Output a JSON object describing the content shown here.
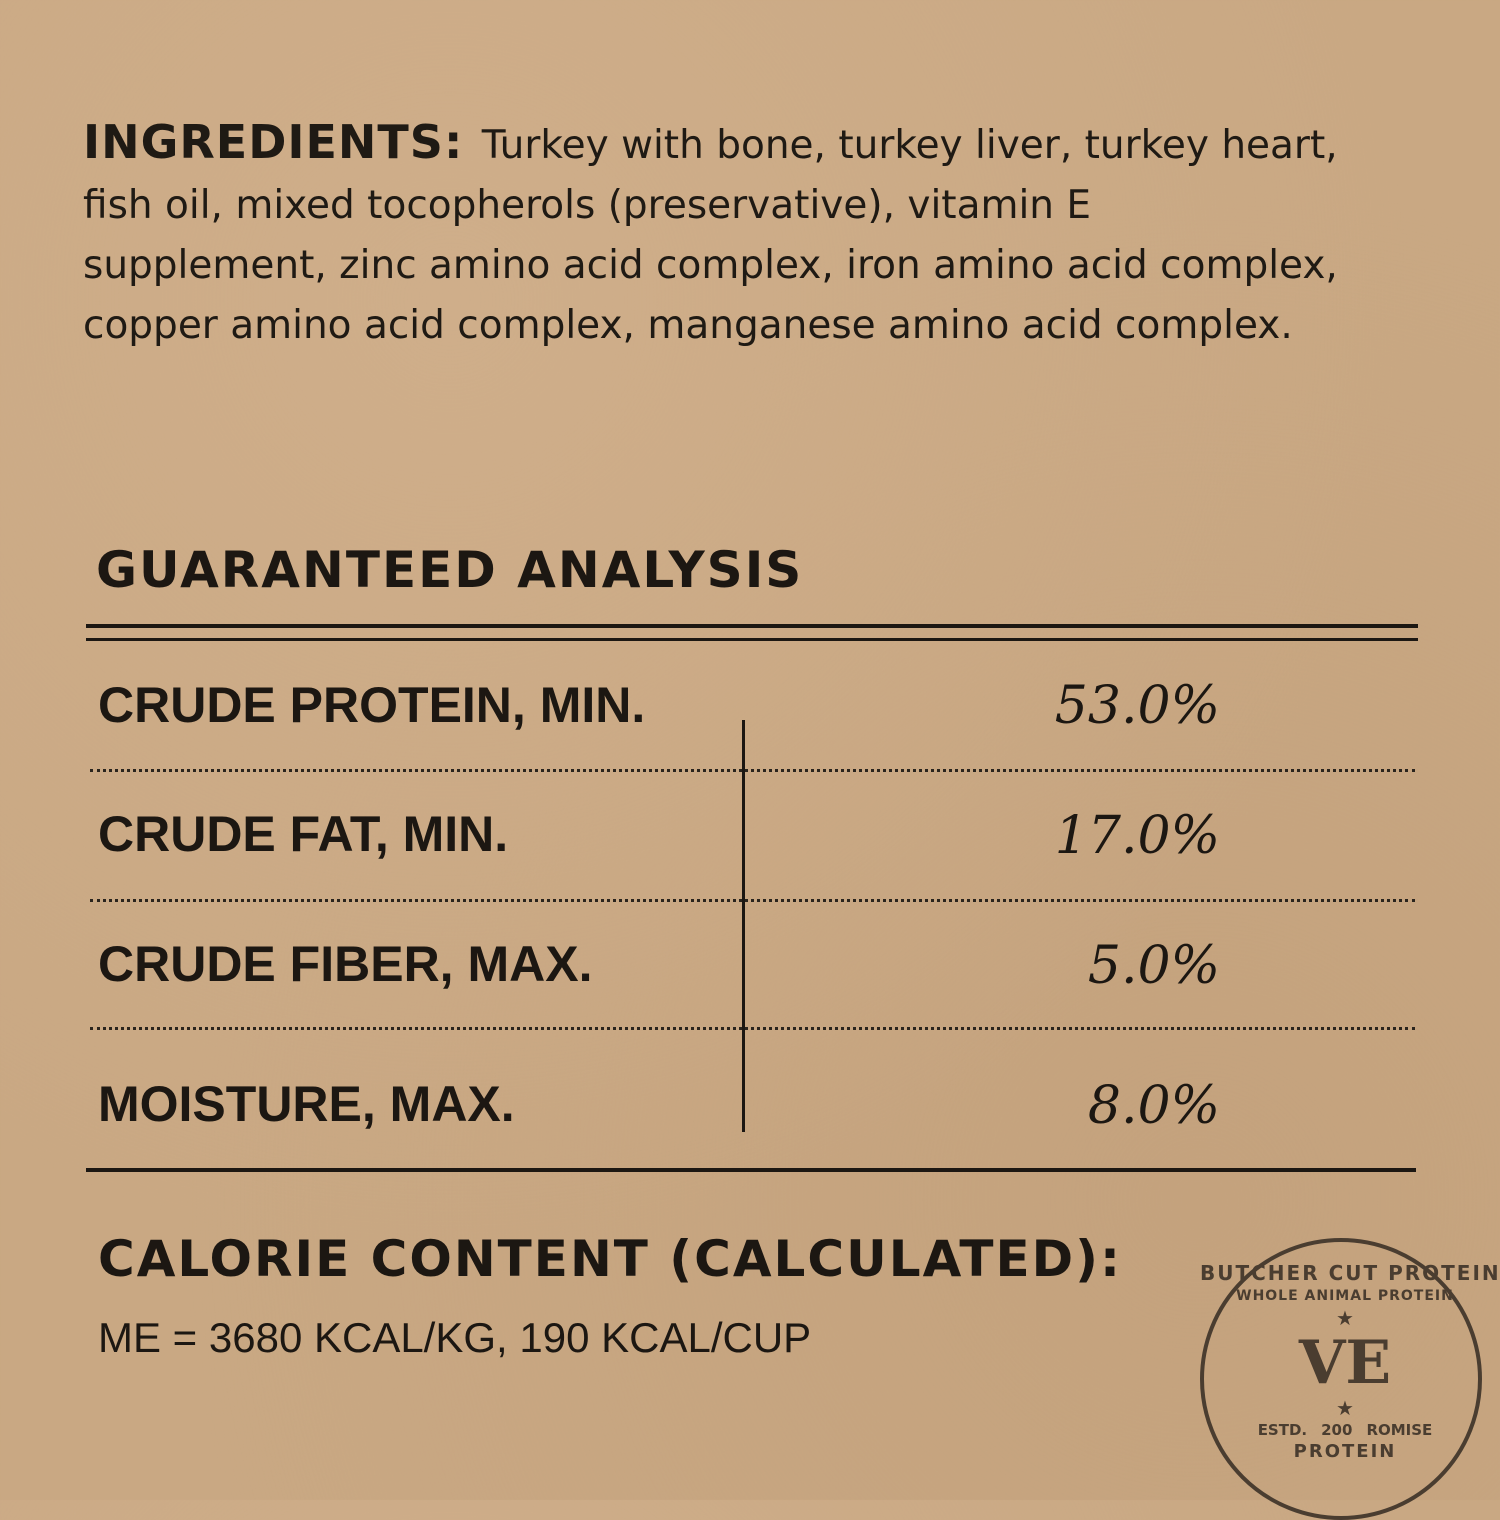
{
  "ingredients": {
    "heading": "INGREDIENTS:",
    "text": "Turkey with bone, turkey liver, turkey heart, fish oil, mixed tocopherols (preservative), vitamin E supplement, zinc amino acid complex, iron amino acid complex, copper amino acid complex, manganese amino acid complex."
  },
  "analysis": {
    "title": "GUARANTEED ANALYSIS",
    "rows": [
      {
        "label": "CRUDE PROTEIN, MIN.",
        "value": "53.0%"
      },
      {
        "label": "CRUDE FAT, MIN.",
        "value": "17.0%"
      },
      {
        "label": "CRUDE FIBER, MAX.",
        "value": "5.0%"
      },
      {
        "label": "MOISTURE, MAX.",
        "value": "8.0%"
      }
    ]
  },
  "calorie": {
    "title": "CALORIE CONTENT (CALCULATED):",
    "value": "ME = 3680 KCAL/KG, 190 KCAL/CUP"
  },
  "stamp": {
    "outer": "BUTCHER CUT PROTEIN",
    "inner": "WHOLE ANIMAL PROTEIN",
    "logo": "VE",
    "estd": "ESTD.",
    "year": "200",
    "promise": "ROMISE",
    "protein": "PROTEIN"
  },
  "colors": {
    "background": "#c9a883",
    "ink": "#1c1712",
    "stamp": "#4a3d30"
  }
}
